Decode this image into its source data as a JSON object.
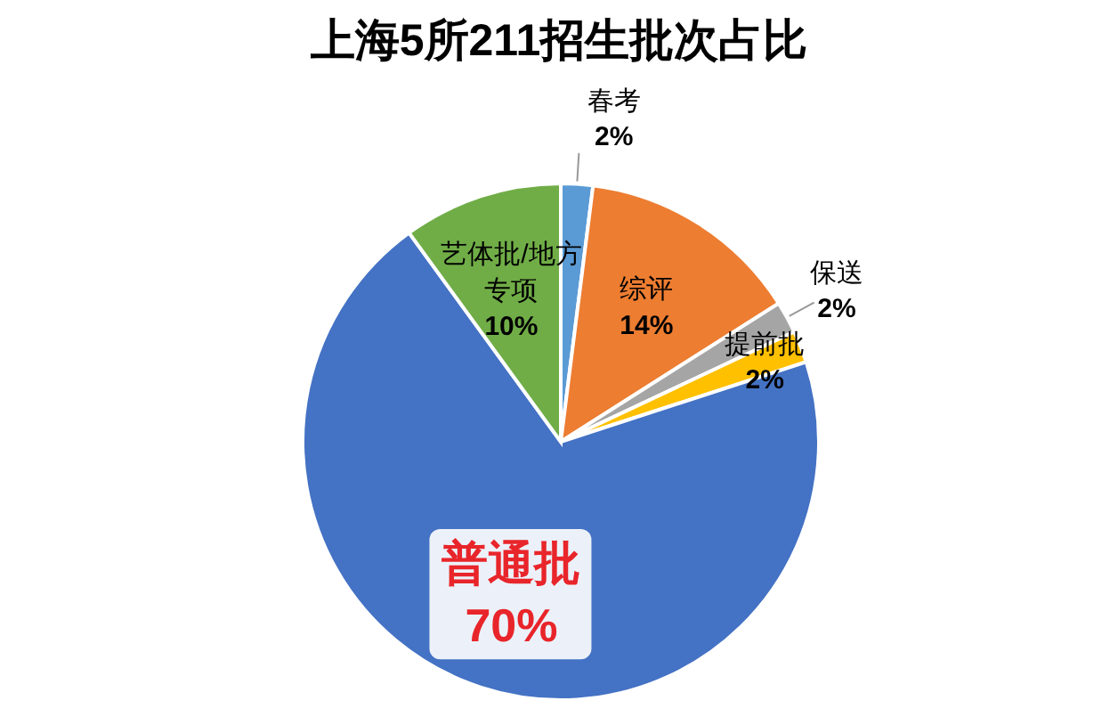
{
  "chart_data": {
    "type": "pie",
    "title": "上海5所211招生批次占比",
    "categories": [
      "春考",
      "综评",
      "保送",
      "提前批",
      "普通批",
      "艺体批/地方专项"
    ],
    "values": [
      2,
      14,
      2,
      2,
      70,
      10
    ],
    "colors": [
      "#5b9bd5",
      "#ed7d31",
      "#a5a5a5",
      "#ffc000",
      "#4472c4",
      "#70ad47"
    ],
    "value_labels": [
      "2%",
      "14%",
      "2%",
      "2%",
      "70%",
      "10%"
    ]
  }
}
